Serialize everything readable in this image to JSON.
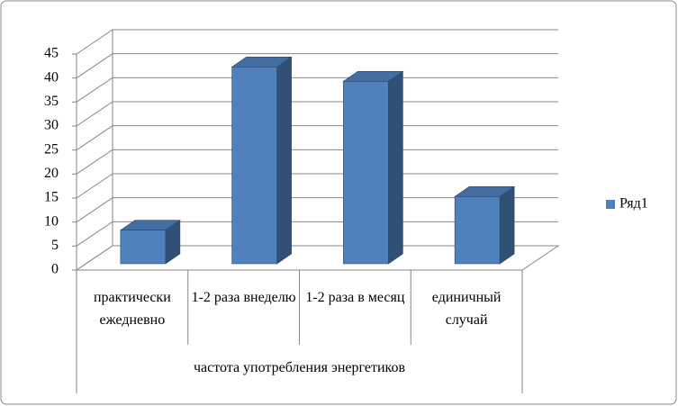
{
  "chart_data": {
    "type": "bar3d",
    "x_label": "частота употребления энергетиков",
    "categories": [
      "практически ежедневно",
      "1-2 раза внеделю",
      "1-2 раза в месяц",
      "единичный случай"
    ],
    "series": [
      {
        "name": "Ряд1",
        "color": "#4f81bd",
        "values": [
          7,
          41,
          38,
          14
        ]
      }
    ],
    "ylim": [
      0,
      45
    ],
    "yticks": [
      0,
      5,
      10,
      15,
      20,
      25,
      30,
      35,
      40,
      45
    ],
    "grid": true,
    "legend": "right"
  }
}
